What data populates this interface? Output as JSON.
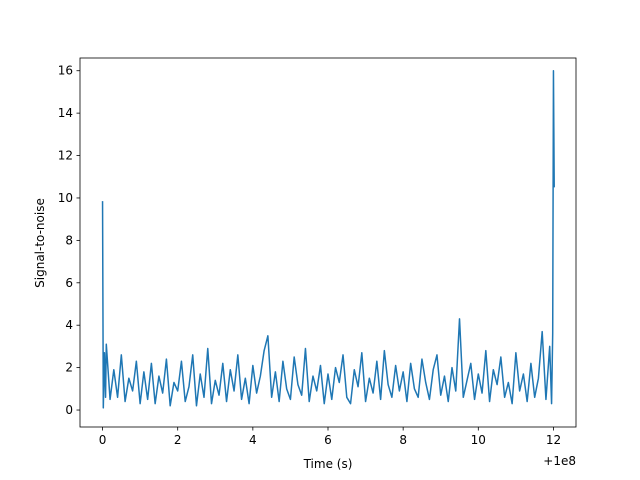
{
  "chart_data": {
    "type": "line",
    "x_label": "Time (s)",
    "y_label": "Signal-to-noise",
    "x_offset_label": "+1e8",
    "xlim": [
      -0.6,
      12.6
    ],
    "ylim": [
      -0.8,
      16.6
    ],
    "xticks": [
      0,
      2,
      4,
      6,
      8,
      10,
      12
    ],
    "yticks": [
      0,
      2,
      4,
      6,
      8,
      10,
      12,
      14,
      16
    ],
    "x": [
      0,
      0.02,
      0.05,
      0.08,
      0.1,
      0.2,
      0.3,
      0.4,
      0.5,
      0.6,
      0.7,
      0.8,
      0.9,
      1.0,
      1.1,
      1.2,
      1.3,
      1.4,
      1.5,
      1.6,
      1.7,
      1.8,
      1.9,
      2.0,
      2.1,
      2.2,
      2.3,
      2.4,
      2.5,
      2.6,
      2.7,
      2.8,
      2.9,
      3.0,
      3.1,
      3.2,
      3.3,
      3.4,
      3.5,
      3.6,
      3.7,
      3.8,
      3.9,
      4.0,
      4.1,
      4.2,
      4.3,
      4.4,
      4.5,
      4.6,
      4.7,
      4.8,
      4.9,
      5.0,
      5.1,
      5.2,
      5.3,
      5.4,
      5.5,
      5.6,
      5.7,
      5.8,
      5.9,
      6.0,
      6.1,
      6.2,
      6.3,
      6.4,
      6.5,
      6.6,
      6.7,
      6.8,
      6.9,
      7.0,
      7.1,
      7.2,
      7.3,
      7.4,
      7.5,
      7.6,
      7.7,
      7.8,
      7.9,
      8.0,
      8.1,
      8.2,
      8.3,
      8.4,
      8.5,
      8.6,
      8.7,
      8.8,
      8.9,
      9.0,
      9.1,
      9.2,
      9.3,
      9.4,
      9.5,
      9.6,
      9.7,
      9.8,
      9.9,
      10.0,
      10.1,
      10.2,
      10.3,
      10.4,
      10.5,
      10.6,
      10.7,
      10.8,
      10.9,
      11.0,
      11.1,
      11.2,
      11.3,
      11.4,
      11.5,
      11.6,
      11.7,
      11.8,
      11.9,
      11.95,
      11.98,
      12,
      12.02
    ],
    "series": [
      {
        "color": "#1f77b4",
        "values": [
          9.85,
          0.1,
          2.7,
          0.6,
          3.1,
          0.5,
          1.9,
          0.6,
          2.6,
          0.4,
          1.5,
          0.9,
          2.3,
          0.3,
          1.8,
          0.5,
          2.2,
          0.3,
          1.6,
          0.8,
          2.4,
          0.2,
          1.3,
          0.9,
          2.3,
          0.4,
          1.1,
          2.6,
          0.2,
          1.7,
          0.6,
          2.9,
          0.3,
          1.4,
          0.7,
          2.2,
          0.4,
          1.9,
          0.9,
          2.6,
          0.5,
          1.5,
          0.3,
          2.1,
          0.8,
          1.6,
          2.8,
          3.5,
          0.6,
          1.8,
          0.4,
          2.3,
          1.0,
          0.5,
          2.5,
          1.2,
          0.7,
          2.9,
          0.4,
          1.6,
          0.9,
          2.1,
          0.3,
          1.7,
          0.5,
          2.0,
          1.3,
          2.6,
          0.6,
          0.3,
          1.9,
          1.1,
          2.7,
          0.4,
          1.5,
          0.8,
          2.3,
          0.5,
          2.8,
          1.2,
          0.6,
          2.1,
          0.9,
          1.8,
          0.4,
          2.2,
          1.0,
          0.6,
          2.4,
          1.3,
          0.5,
          1.9,
          2.6,
          0.7,
          1.6,
          0.4,
          2.0,
          0.9,
          4.3,
          0.6,
          1.4,
          2.2,
          0.5,
          1.7,
          0.8,
          2.8,
          0.4,
          1.9,
          1.2,
          2.5,
          0.6,
          1.3,
          0.3,
          2.7,
          0.9,
          1.7,
          0.4,
          2.2,
          0.6,
          1.5,
          3.7,
          0.5,
          3.0,
          0.3,
          3.6,
          16.0,
          10.5
        ]
      }
    ]
  }
}
